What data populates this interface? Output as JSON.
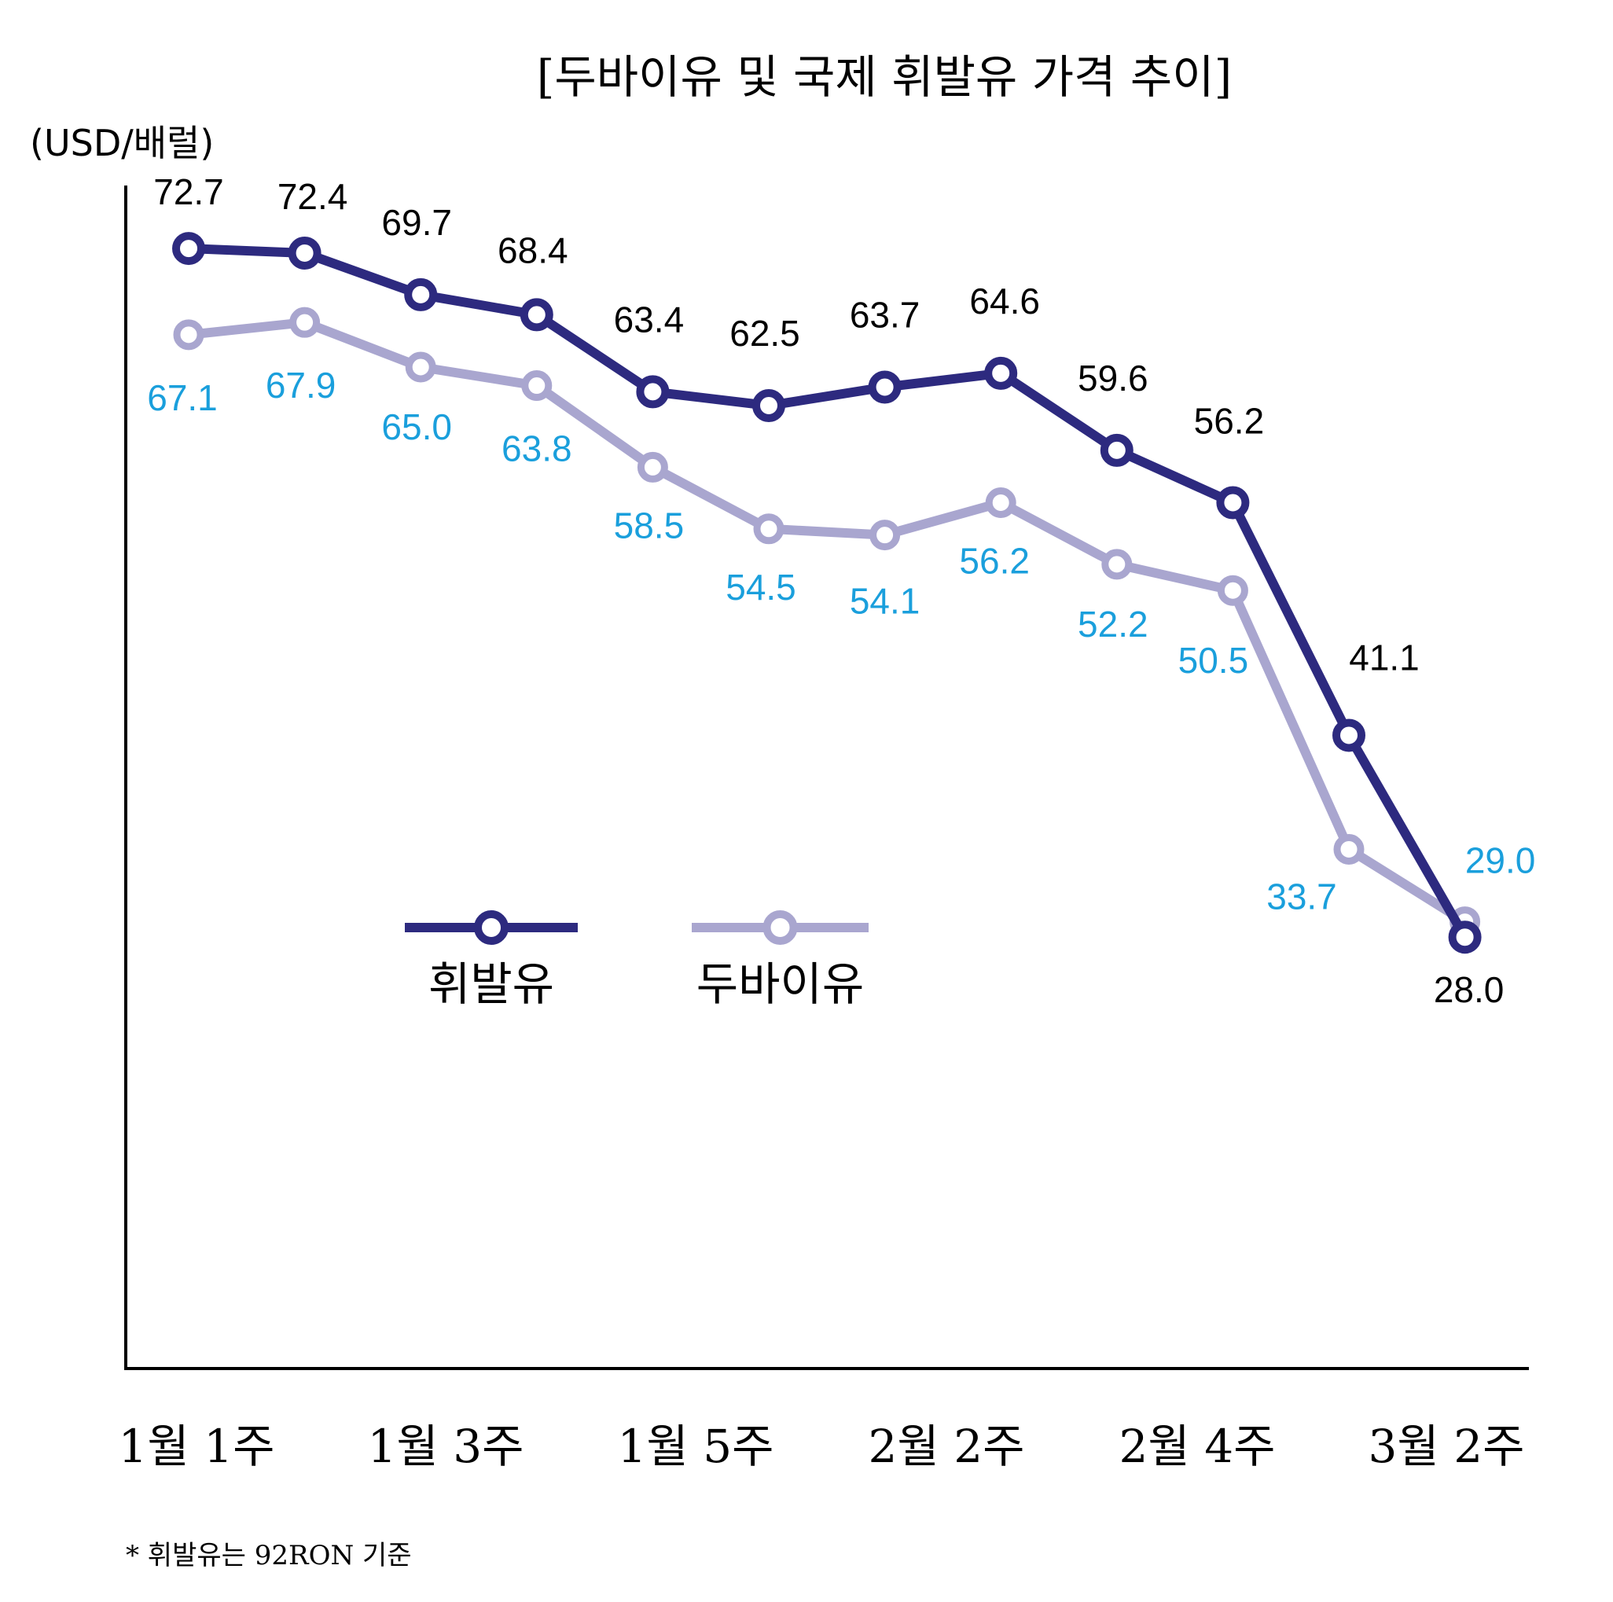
{
  "chart_data": {
    "type": "line",
    "title": "[두바이유 및 국제 휘발유 가격 추이]",
    "ylabel": "(USD/배럴)",
    "xlabel": "",
    "x_tick_labels": [
      "1월 1주",
      "1월 3주",
      "1월 5주",
      "2월 2주",
      "2월 4주",
      "3월 2주"
    ],
    "points": 12,
    "ylim": [
      0,
      80
    ],
    "grid": false,
    "legend_position": "center-left",
    "series": [
      {
        "name": "휘발유",
        "color": "#2d2a7f",
        "values": [
          72.7,
          72.4,
          69.7,
          68.4,
          63.4,
          62.5,
          63.7,
          64.6,
          59.6,
          56.2,
          41.1,
          28.0
        ],
        "labels": [
          "72.7",
          "72.4",
          "69.7",
          "68.4",
          "63.4",
          "62.5",
          "63.7",
          "64.6",
          "59.6",
          "56.2",
          "41.1",
          "28.0"
        ]
      },
      {
        "name": "두바이유",
        "color": "#a9a6cf",
        "label_color": "#1a9fdc",
        "values": [
          67.1,
          67.9,
          65.0,
          63.8,
          58.5,
          54.5,
          54.1,
          56.2,
          52.2,
          50.5,
          33.7,
          29.0
        ],
        "labels": [
          "67.1",
          "67.9",
          "65.0",
          "63.8",
          "58.5",
          "54.5",
          "54.1",
          "56.2",
          "52.2",
          "50.5",
          "33.7",
          "29.0"
        ]
      }
    ],
    "footnote": "* 휘발유는 92RON 기준"
  }
}
